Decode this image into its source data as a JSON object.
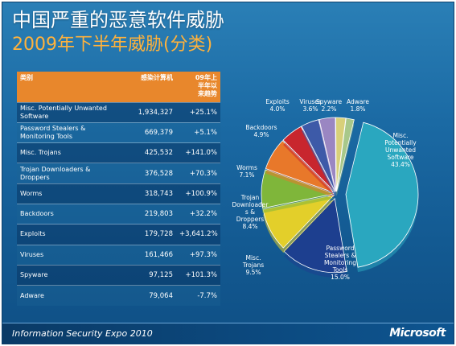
{
  "title": "中国严重的恶意软件威胁",
  "subtitle": "2009年下半年威胁(分类)",
  "table": {
    "headers": [
      "类别",
      "感染计算机",
      "09年上\n半年以\n来趋势"
    ],
    "rows": [
      {
        "category": "Misc. Potentially Unwanted Software",
        "computers": "1,934,327",
        "trend": "+25.1%"
      },
      {
        "category": "Password Stealers & Monitoring Tools",
        "computers": "669,379",
        "trend": "+5.1%"
      },
      {
        "category": "Misc. Trojans",
        "computers": "425,532",
        "trend": "+141.0%"
      },
      {
        "category": "Trojan Downloaders & Droppers",
        "computers": "376,528",
        "trend": "+70.3%"
      },
      {
        "category": "Worms",
        "computers": "318,743",
        "trend": "+100.9%"
      },
      {
        "category": "Backdoors",
        "computers": "219,803",
        "trend": "+32.2%"
      },
      {
        "category": "Exploits",
        "computers": "179,728",
        "trend": "+3,641.2%"
      },
      {
        "category": "Viruses",
        "computers": "161,466",
        "trend": "+97.3%"
      },
      {
        "category": "Spyware",
        "computers": "97,125",
        "trend": "+101.3%"
      },
      {
        "category": "Adware",
        "computers": "79,064",
        "trend": "-7.7%"
      }
    ]
  },
  "pie": {
    "slices": [
      {
        "name": "Misc. Potentially Unwanted Software",
        "label_lines": [
          "Misc.",
          "Potentially",
          "Unwanted",
          "Software",
          "43.4%"
        ],
        "percent": 43.4,
        "color": "#2aa7bf"
      },
      {
        "name": "Password Stealers & Monitoring Tools",
        "label_lines": [
          "Password",
          "Stealers &",
          "Monitoring",
          "Tools",
          "15.0%"
        ],
        "percent": 15.0,
        "color": "#1d3f8f"
      },
      {
        "name": "Misc. Trojans",
        "label_lines": [
          "Misc.",
          "Trojans",
          "9.5%"
        ],
        "percent": 9.5,
        "color": "#e3cf2a"
      },
      {
        "name": "Trojan Downloaders & Droppers",
        "label_lines": [
          "Trojan",
          "Downloader",
          "s &",
          "Droppers",
          "8.4%"
        ],
        "percent": 8.4,
        "color": "#7fb63a"
      },
      {
        "name": "Worms",
        "label_lines": [
          "Worms",
          "7.1%"
        ],
        "percent": 7.1,
        "color": "#e8782a"
      },
      {
        "name": "Backdoors",
        "label_lines": [
          "Backdoors",
          "4.9%"
        ],
        "percent": 4.9,
        "color": "#c8262e"
      },
      {
        "name": "Exploits",
        "label_lines": [
          "Exploits",
          "4.0%"
        ],
        "percent": 4.0,
        "color": "#3d5aa8"
      },
      {
        "name": "Viruses",
        "label_lines": [
          "Viruses",
          "3.6%"
        ],
        "percent": 3.6,
        "color": "#9a86c2"
      },
      {
        "name": "Spyware",
        "label_lines": [
          "Spyware",
          "2.2%"
        ],
        "percent": 2.2,
        "color": "#d8d07a"
      },
      {
        "name": "Adware",
        "label_lines": [
          "Adware",
          "1.8%"
        ],
        "percent": 1.8,
        "color": "#a8c88a"
      }
    ]
  },
  "footer": {
    "event": "Information Security Expo 2010",
    "logo": "Microsoft"
  }
}
